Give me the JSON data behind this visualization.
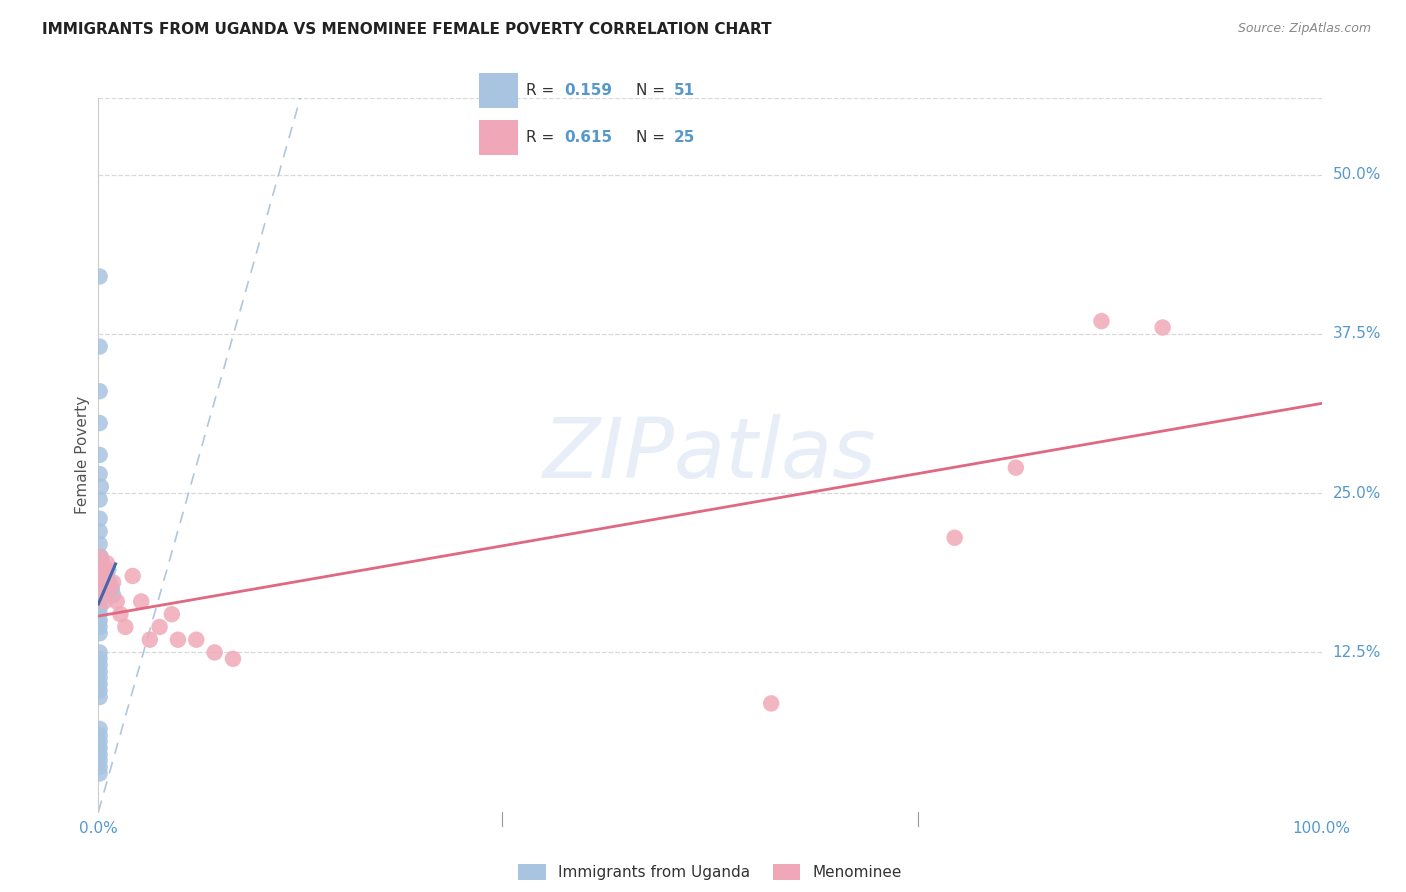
{
  "title": "IMMIGRANTS FROM UGANDA VS MENOMINEE FEMALE POVERTY CORRELATION CHART",
  "source": "Source: ZipAtlas.com",
  "ylabel": "Female Poverty",
  "legend_label1": "Immigrants from Uganda",
  "legend_label2": "Menominee",
  "legend_R1": "0.159",
  "legend_N1": "51",
  "legend_R2": "0.615",
  "legend_N2": "25",
  "color_blue": "#a8c4e0",
  "color_pink": "#f0a8b8",
  "color_blue_line": "#4466aa",
  "color_pink_line": "#e06880",
  "color_dashed": "#a8c0d8",
  "watermark": "ZIPatlas",
  "blue_x": [
    0.001,
    0.001,
    0.001,
    0.001,
    0.001,
    0.001,
    0.001,
    0.001,
    0.001,
    0.001,
    0.001,
    0.001,
    0.001,
    0.001,
    0.001,
    0.001,
    0.001,
    0.001,
    0.001,
    0.001,
    0.002,
    0.002,
    0.002,
    0.003,
    0.003,
    0.004,
    0.004,
    0.005,
    0.006,
    0.007,
    0.008,
    0.009,
    0.01,
    0.011,
    0.012,
    0.001,
    0.001,
    0.001,
    0.001,
    0.001,
    0.001,
    0.001,
    0.001,
    0.001,
    0.001,
    0.001,
    0.001,
    0.001,
    0.001,
    0.001,
    0.001
  ],
  "blue_y": [
    0.42,
    0.365,
    0.33,
    0.305,
    0.28,
    0.265,
    0.245,
    0.23,
    0.22,
    0.21,
    0.19,
    0.185,
    0.175,
    0.165,
    0.16,
    0.155,
    0.15,
    0.145,
    0.14,
    0.2,
    0.255,
    0.2,
    0.175,
    0.195,
    0.185,
    0.185,
    0.175,
    0.185,
    0.19,
    0.185,
    0.19,
    0.18,
    0.175,
    0.175,
    0.17,
    0.125,
    0.12,
    0.115,
    0.11,
    0.105,
    0.1,
    0.095,
    0.09,
    0.065,
    0.06,
    0.055,
    0.05,
    0.045,
    0.04,
    0.035,
    0.03
  ],
  "pink_x": [
    0.001,
    0.002,
    0.003,
    0.005,
    0.006,
    0.007,
    0.009,
    0.012,
    0.015,
    0.018,
    0.022,
    0.028,
    0.035,
    0.042,
    0.05,
    0.065,
    0.06,
    0.08,
    0.095,
    0.11,
    0.55,
    0.7,
    0.75,
    0.82,
    0.87
  ],
  "pink_y": [
    0.2,
    0.185,
    0.175,
    0.165,
    0.19,
    0.195,
    0.175,
    0.18,
    0.165,
    0.155,
    0.145,
    0.185,
    0.165,
    0.135,
    0.145,
    0.135,
    0.155,
    0.135,
    0.125,
    0.12,
    0.085,
    0.215,
    0.27,
    0.385,
    0.38
  ],
  "xlim": [
    0.0,
    1.0
  ],
  "ylim": [
    0.0,
    0.56
  ],
  "y_ticks": [
    0.125,
    0.25,
    0.375,
    0.5
  ],
  "y_tick_labels": [
    "12.5%",
    "25.0%",
    "37.5%",
    "50.0%"
  ],
  "x_ticks": [
    0.0,
    1.0
  ],
  "x_tick_labels": [
    "0.0%",
    "100.0%"
  ],
  "background_color": "#ffffff",
  "grid_color": "#d8d8d8"
}
